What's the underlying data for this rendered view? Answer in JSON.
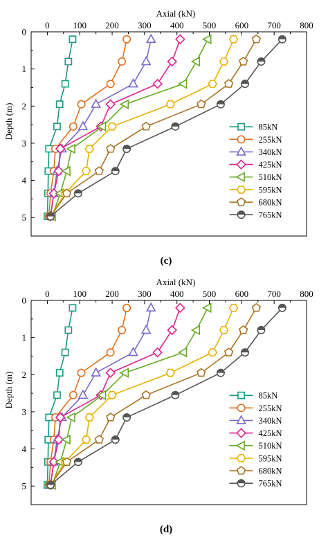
{
  "chart_data": [
    {
      "type": "line",
      "caption": "(c)",
      "xlabel": "Axial (kN)",
      "ylabel": "Depth (m)",
      "xlim": [
        -50,
        800
      ],
      "ylim": [
        0,
        5.5
      ],
      "x_axis_position": "top",
      "y_inverted": true,
      "grid": false,
      "legend_position": "bottom-right",
      "x_ticks": [
        "0",
        "100",
        "200",
        "300",
        "400",
        "500",
        "600",
        "700",
        "800"
      ],
      "y_ticks": [
        "0",
        "1",
        "2",
        "3",
        "4",
        "5"
      ],
      "series": [
        {
          "name": "85kN",
          "color": "#1a9a80",
          "marker": "square",
          "points": [
            [
              78,
              0.2
            ],
            [
              65,
              0.8
            ],
            [
              55,
              1.4
            ],
            [
              38,
              1.95
            ],
            [
              30,
              2.55
            ],
            [
              5,
              3.15
            ],
            [
              3,
              3.75
            ],
            [
              2,
              4.35
            ],
            [
              0,
              4.97
            ]
          ]
        },
        {
          "name": "255kN",
          "color": "#e0701e",
          "marker": "circle",
          "points": [
            [
              245,
              0.2
            ],
            [
              230,
              0.8
            ],
            [
              195,
              1.4
            ],
            [
              105,
              1.95
            ],
            [
              80,
              2.55
            ],
            [
              25,
              3.15
            ],
            [
              20,
              3.75
            ],
            [
              10,
              4.35
            ],
            [
              5,
              4.97
            ]
          ]
        },
        {
          "name": "340kN",
          "color": "#7b68c9",
          "marker": "triangle-up",
          "points": [
            [
              320,
              0.2
            ],
            [
              305,
              0.8
            ],
            [
              265,
              1.4
            ],
            [
              150,
              1.95
            ],
            [
              110,
              2.55
            ],
            [
              45,
              3.15
            ],
            [
              30,
              3.75
            ],
            [
              20,
              4.35
            ],
            [
              10,
              4.97
            ]
          ]
        },
        {
          "name": "425kN",
          "color": "#e0218a",
          "marker": "diamond",
          "points": [
            [
              410,
              0.2
            ],
            [
              385,
              0.8
            ],
            [
              340,
              1.4
            ],
            [
              195,
              1.95
            ],
            [
              165,
              2.55
            ],
            [
              40,
              3.15
            ],
            [
              35,
              3.75
            ],
            [
              20,
              4.35
            ],
            [
              10,
              4.97
            ]
          ]
        },
        {
          "name": "510kN",
          "color": "#66aa22",
          "marker": "triangle-left",
          "points": [
            [
              495,
              0.2
            ],
            [
              460,
              0.8
            ],
            [
              420,
              1.4
            ],
            [
              240,
              1.95
            ],
            [
              170,
              2.55
            ],
            [
              75,
              3.15
            ],
            [
              60,
              3.75
            ],
            [
              40,
              4.35
            ],
            [
              15,
              4.97
            ]
          ]
        },
        {
          "name": "595kN",
          "color": "#e6b000",
          "marker": "hexagon",
          "points": [
            [
              575,
              0.2
            ],
            [
              545,
              0.8
            ],
            [
              510,
              1.4
            ],
            [
              380,
              1.95
            ],
            [
              200,
              2.55
            ],
            [
              130,
              3.15
            ],
            [
              120,
              3.75
            ],
            [
              55,
              4.35
            ],
            [
              10,
              4.97
            ]
          ]
        },
        {
          "name": "680kN",
          "color": "#a87424",
          "marker": "pentagon",
          "points": [
            [
              645,
              0.2
            ],
            [
              605,
              0.8
            ],
            [
              560,
              1.4
            ],
            [
              475,
              1.95
            ],
            [
              305,
              2.55
            ],
            [
              195,
              3.15
            ],
            [
              160,
              3.75
            ],
            [
              60,
              4.35
            ],
            [
              10,
              4.97
            ]
          ]
        },
        {
          "name": "765kN",
          "color": "#555555",
          "marker": "half-circle",
          "points": [
            [
              725,
              0.2
            ],
            [
              660,
              0.8
            ],
            [
              610,
              1.4
            ],
            [
              535,
              1.95
            ],
            [
              395,
              2.55
            ],
            [
              245,
              3.15
            ],
            [
              210,
              3.75
            ],
            [
              95,
              4.35
            ],
            [
              10,
              4.97
            ]
          ]
        }
      ]
    },
    {
      "type": "line",
      "caption": "(d)",
      "xlabel": "Axial (kN)",
      "ylabel": "Depth (m)",
      "xlim": [
        -50,
        800
      ],
      "ylim": [
        0,
        5.5
      ],
      "x_axis_position": "top",
      "y_inverted": true,
      "grid": false,
      "legend_position": "bottom-right",
      "x_ticks": [
        "0",
        "100",
        "200",
        "300",
        "400",
        "500",
        "600",
        "700",
        "800"
      ],
      "y_ticks": [
        "0",
        "1",
        "2",
        "3",
        "4",
        "5"
      ],
      "series": [
        {
          "name": "85kN",
          "color": "#1a9a80",
          "marker": "square",
          "points": [
            [
              78,
              0.2
            ],
            [
              65,
              0.8
            ],
            [
              55,
              1.4
            ],
            [
              38,
              1.95
            ],
            [
              30,
              2.55
            ],
            [
              5,
              3.15
            ],
            [
              3,
              3.75
            ],
            [
              2,
              4.35
            ],
            [
              0,
              4.97
            ]
          ]
        },
        {
          "name": "255kN",
          "color": "#e0701e",
          "marker": "circle",
          "points": [
            [
              245,
              0.2
            ],
            [
              230,
              0.8
            ],
            [
              195,
              1.4
            ],
            [
              105,
              1.95
            ],
            [
              80,
              2.55
            ],
            [
              25,
              3.15
            ],
            [
              20,
              3.75
            ],
            [
              10,
              4.35
            ],
            [
              5,
              4.97
            ]
          ]
        },
        {
          "name": "340kN",
          "color": "#7b68c9",
          "marker": "triangle-up",
          "points": [
            [
              320,
              0.2
            ],
            [
              305,
              0.8
            ],
            [
              265,
              1.4
            ],
            [
              150,
              1.95
            ],
            [
              110,
              2.55
            ],
            [
              45,
              3.15
            ],
            [
              30,
              3.75
            ],
            [
              20,
              4.35
            ],
            [
              10,
              4.97
            ]
          ]
        },
        {
          "name": "425kN",
          "color": "#e0218a",
          "marker": "diamond",
          "points": [
            [
              410,
              0.2
            ],
            [
              385,
              0.8
            ],
            [
              340,
              1.4
            ],
            [
              195,
              1.95
            ],
            [
              165,
              2.55
            ],
            [
              40,
              3.15
            ],
            [
              35,
              3.75
            ],
            [
              20,
              4.35
            ],
            [
              10,
              4.97
            ]
          ]
        },
        {
          "name": "510kN",
          "color": "#66aa22",
          "marker": "triangle-left",
          "points": [
            [
              495,
              0.2
            ],
            [
              460,
              0.8
            ],
            [
              420,
              1.4
            ],
            [
              240,
              1.95
            ],
            [
              170,
              2.55
            ],
            [
              75,
              3.15
            ],
            [
              60,
              3.75
            ],
            [
              40,
              4.35
            ],
            [
              15,
              4.97
            ]
          ]
        },
        {
          "name": "595kN",
          "color": "#e6b000",
          "marker": "hexagon",
          "points": [
            [
              575,
              0.2
            ],
            [
              545,
              0.8
            ],
            [
              510,
              1.4
            ],
            [
              380,
              1.95
            ],
            [
              200,
              2.55
            ],
            [
              130,
              3.15
            ],
            [
              120,
              3.75
            ],
            [
              55,
              4.35
            ],
            [
              10,
              4.97
            ]
          ]
        },
        {
          "name": "680kN",
          "color": "#a87424",
          "marker": "pentagon",
          "points": [
            [
              645,
              0.2
            ],
            [
              605,
              0.8
            ],
            [
              560,
              1.4
            ],
            [
              475,
              1.95
            ],
            [
              305,
              2.55
            ],
            [
              195,
              3.15
            ],
            [
              160,
              3.75
            ],
            [
              60,
              4.35
            ],
            [
              10,
              4.97
            ]
          ]
        },
        {
          "name": "765kN",
          "color": "#555555",
          "marker": "half-circle",
          "points": [
            [
              725,
              0.2
            ],
            [
              660,
              0.8
            ],
            [
              610,
              1.4
            ],
            [
              535,
              1.95
            ],
            [
              395,
              2.55
            ],
            [
              245,
              3.15
            ],
            [
              210,
              3.75
            ],
            [
              95,
              4.35
            ],
            [
              10,
              4.97
            ]
          ]
        }
      ]
    }
  ]
}
